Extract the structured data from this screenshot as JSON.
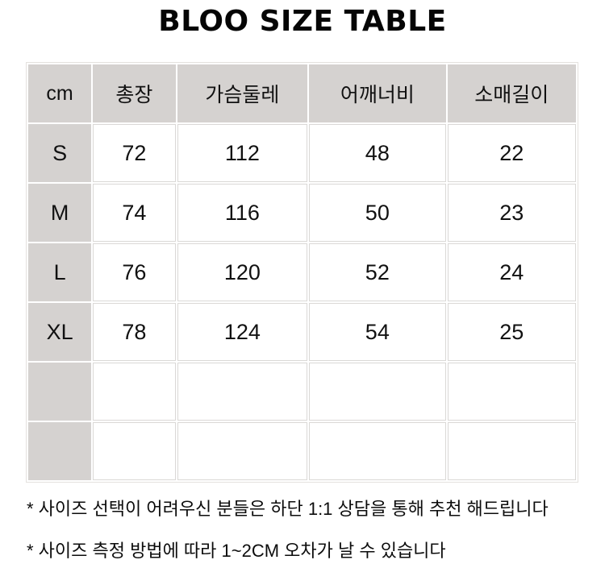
{
  "title": "BLOO SIZE TABLE",
  "chart_data": {
    "type": "table",
    "title": "BLOO SIZE TABLE",
    "unit_label": "cm",
    "columns": [
      "총장",
      "가슴둘레",
      "어깨너비",
      "소매길이"
    ],
    "rows": [
      {
        "size": "S",
        "values": [
          "72",
          "112",
          "48",
          "22"
        ]
      },
      {
        "size": "M",
        "values": [
          "74",
          "116",
          "50",
          "23"
        ]
      },
      {
        "size": "L",
        "values": [
          "76",
          "120",
          "52",
          "24"
        ]
      },
      {
        "size": "XL",
        "values": [
          "78",
          "124",
          "54",
          "25"
        ]
      },
      {
        "size": "",
        "values": [
          "",
          "",
          "",
          ""
        ]
      },
      {
        "size": "",
        "values": [
          "",
          "",
          "",
          ""
        ]
      }
    ]
  },
  "notes": [
    "* 사이즈 선택이 어려우신 분들은 하단 1:1 상담을 통해 추천 해드립니다",
    "* 사이즈 측정 방법에 따라 1~2CM 오차가 날 수 있습니다"
  ],
  "colors": {
    "header_bg": "#d5d2d0",
    "cell_border": "#dad8d6",
    "text": "#111111",
    "background": "#ffffff"
  }
}
